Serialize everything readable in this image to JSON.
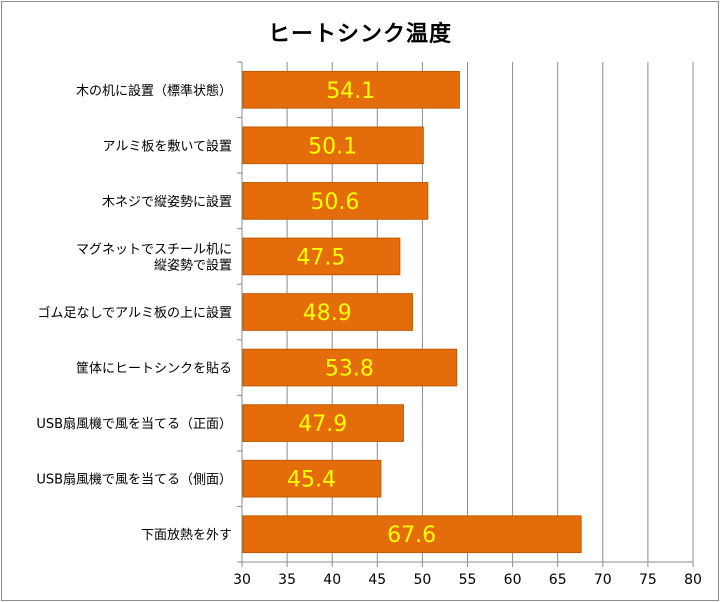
{
  "chart_data": {
    "type": "bar",
    "orientation": "horizontal",
    "title": "ヒートシンク温度",
    "categories": [
      "木の机に設置（標準状態）",
      "アルミ板を敷いて設置",
      "木ネジで縦姿勢に設置",
      "マグネットでスチール机に\n縦姿勢で設置",
      "ゴム足なしでアルミ板の上に設置",
      "筐体にヒートシンクを貼る",
      "USB扇風機で風を当てる（正面）",
      "USB扇風機で風を当てる（側面）",
      "下面放熱を外す"
    ],
    "values": [
      54.1,
      50.1,
      50.6,
      47.5,
      48.9,
      53.8,
      47.9,
      45.4,
      67.6
    ],
    "value_labels": [
      "54.1",
      "50.1",
      "50.6",
      "47.5",
      "48.9",
      "53.8",
      "47.9",
      "45.4",
      "67.6"
    ],
    "xlim": [
      30,
      80
    ],
    "xticks": [
      "30",
      "35",
      "40",
      "45",
      "50",
      "55",
      "60",
      "65",
      "70",
      "75",
      "80"
    ],
    "grid": "vertical",
    "bar_color": "#e46c0a",
    "bar_edge_color": "#c05a00",
    "label_color": "#ffff00"
  }
}
